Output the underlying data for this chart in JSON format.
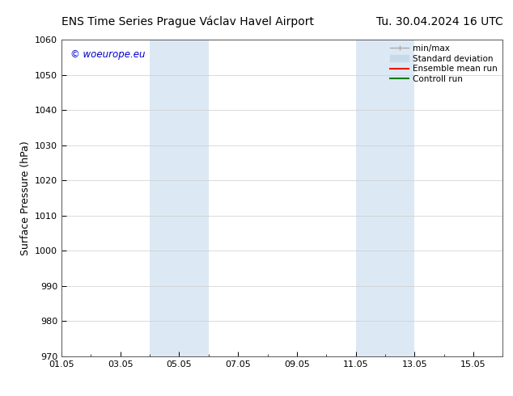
{
  "title_left": "ENS Time Series Prague Václav Havel Airport",
  "title_right": "Tu. 30.04.2024 16 UTC",
  "ylabel": "Surface Pressure (hPa)",
  "ylim": [
    970,
    1060
  ],
  "yticks": [
    970,
    980,
    990,
    1000,
    1010,
    1020,
    1030,
    1040,
    1050,
    1060
  ],
  "xlim": [
    0,
    15
  ],
  "xtick_labels": [
    "01.05",
    "03.05",
    "05.05",
    "07.05",
    "09.05",
    "11.05",
    "13.05",
    "15.05"
  ],
  "xtick_positions": [
    0,
    2,
    4,
    6,
    8,
    10,
    12,
    14
  ],
  "shaded_bands": [
    {
      "x_start": 3.0,
      "x_end": 5.0,
      "color": "#dce9f5"
    },
    {
      "x_start": 10.0,
      "x_end": 12.0,
      "color": "#dce9f5"
    }
  ],
  "watermark": "© woeurope.eu",
  "watermark_color": "#0000cc",
  "background_color": "#ffffff",
  "legend_minmax_color": "#aaaaaa",
  "legend_stddev_color": "#c8daea",
  "legend_mean_color": "#ff0000",
  "legend_ctrl_color": "#008000",
  "grid_color": "#cccccc",
  "spine_color": "#555555",
  "title_fontsize": 10,
  "axis_fontsize": 9,
  "tick_fontsize": 8,
  "legend_fontsize": 7.5
}
